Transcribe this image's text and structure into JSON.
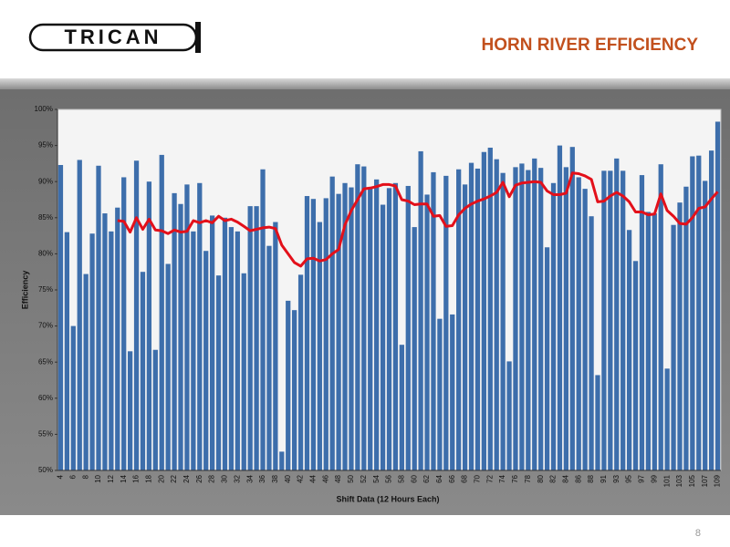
{
  "header": {
    "logo": "TRICAN",
    "title": "HORN RIVER EFFICIENCY"
  },
  "chart_data": {
    "type": "bar",
    "x_label": "Shift Data (12 Hours Each)",
    "y_label": "Efficiency",
    "categories": [
      "4",
      null,
      "6",
      null,
      "8",
      null,
      "10",
      null,
      "12",
      null,
      "14",
      null,
      "16",
      null,
      "18",
      null,
      "20",
      null,
      "22",
      null,
      "24",
      null,
      "26",
      null,
      "28",
      null,
      "30",
      null,
      "32",
      null,
      "34",
      null,
      "36",
      null,
      "38",
      null,
      "40",
      null,
      "42",
      null,
      "44",
      null,
      "46",
      null,
      "48",
      null,
      "50",
      null,
      "52",
      null,
      "54",
      null,
      "56",
      null,
      "58",
      null,
      "60",
      null,
      "62",
      null,
      "64",
      null,
      "66",
      null,
      "68",
      null,
      "70",
      null,
      "72",
      null,
      "74",
      null,
      "76",
      null,
      "78",
      null,
      "80",
      null,
      "82",
      null,
      "84",
      null,
      "86",
      null,
      "88",
      null,
      "91",
      null,
      "93",
      null,
      "95",
      null,
      "97",
      null,
      "99",
      null,
      "101",
      null,
      "103",
      null,
      "105",
      null,
      "107",
      null,
      "109"
    ],
    "series": [
      {
        "type": "bar",
        "color": "#3d6eab",
        "values": [
          92.3,
          83,
          70,
          93,
          77.2,
          82.8,
          92.2,
          85.6,
          83.1,
          86.4,
          90.6,
          66.5,
          92.9,
          77.5,
          90,
          66.7,
          93.7,
          78.6,
          88.4,
          86.9,
          89.6,
          83.1,
          89.8,
          80.4,
          85.3,
          77,
          85,
          83.7,
          83.1,
          77.3,
          86.6,
          86.6,
          91.7,
          81.1,
          84.4,
          52.6,
          73.5,
          72.2,
          77.1,
          88,
          87.6,
          84.4,
          87.7,
          90.7,
          88.3,
          89.8,
          89.2,
          92.4,
          92.1,
          89.2,
          90.3,
          86.8,
          89.1,
          89.8,
          67.4,
          89.4,
          83.7,
          94.2,
          88.2,
          91.3,
          71,
          90.8,
          71.6,
          91.7,
          89.6,
          92.6,
          91.8,
          94.1,
          94.7,
          93.1,
          91.2,
          65.1,
          92,
          92.5,
          91.6,
          93.2,
          91.9,
          80.9,
          89.8,
          95,
          92,
          94.8,
          90.6,
          89,
          85.2,
          63.2,
          91.5,
          91.5,
          93.2,
          91.5,
          83.3,
          79,
          90.9,
          85.8,
          85.6,
          92.4,
          64.1,
          84,
          87.1,
          89.3,
          93.5,
          93.6,
          90.1,
          94.3,
          98.3
        ]
      },
      {
        "type": "line",
        "color": "#e3101a",
        "values": [
          null,
          null,
          null,
          null,
          null,
          null,
          null,
          null,
          null,
          84.6,
          84.5,
          83,
          85,
          83.4,
          84.8,
          83.3,
          83.2,
          82.8,
          83.3,
          83,
          83.1,
          84.6,
          84.3,
          84.6,
          84.3,
          85.2,
          84.6,
          84.8,
          84.4,
          83.8,
          83.2,
          83.4,
          83.6,
          83.7,
          83.5,
          81.2,
          80,
          78.8,
          78.3,
          79.3,
          79.4,
          79,
          79.2,
          80,
          80.6,
          84,
          86,
          87.5,
          89,
          89.1,
          89.3,
          89.6,
          89.6,
          89.4,
          87.5,
          87.3,
          86.8,
          86.9,
          86.9,
          85.2,
          85.3,
          83.8,
          83.9,
          85.4,
          86.3,
          86.9,
          87.3,
          87.6,
          88,
          88.5,
          89.9,
          87.9,
          89.5,
          89.8,
          89.9,
          90,
          89.9,
          88.7,
          88.2,
          88.2,
          88.4,
          91.2,
          91.1,
          90.8,
          90.3,
          87.2,
          87.3,
          88,
          88.5,
          88,
          87.2,
          85.8,
          85.8,
          85.4,
          85.5,
          88.3,
          86,
          85.2,
          84.2,
          84.1,
          85,
          86.3,
          86.5,
          87.6,
          88.6
        ]
      }
    ],
    "ylim": [
      50,
      100
    ],
    "yticks": [
      {
        "value": 50,
        "label": "50%"
      },
      {
        "value": 55,
        "label": "55%"
      },
      {
        "value": 60,
        "label": "60%"
      },
      {
        "value": 65,
        "label": "65%"
      },
      {
        "value": 70,
        "label": "70%"
      },
      {
        "value": 75,
        "label": "75%"
      },
      {
        "value": 80,
        "label": "80%"
      },
      {
        "value": 85,
        "label": "85%"
      },
      {
        "value": 90,
        "label": "90%"
      },
      {
        "value": 95,
        "label": "95%"
      },
      {
        "value": 100,
        "label": "100%"
      }
    ],
    "grid": false
  },
  "footer": {
    "page_number": "8"
  }
}
